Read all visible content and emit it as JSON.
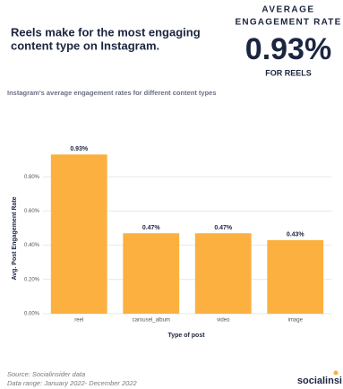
{
  "header": {
    "title_lines": [
      "Reels make for the most engaging",
      "content type on Instagram."
    ],
    "kpi_label_lines": [
      "AVERAGE",
      "ENGAGEMENT RATE"
    ],
    "kpi_value": "0.93%",
    "kpi_caption": "FOR REELS",
    "subtitle": "Instagram's average engagement rates for different content types"
  },
  "chart_data": {
    "type": "bar",
    "x_label": "Type of post",
    "y_label": "Avg. Post Engagement Rate",
    "categories": [
      "reel",
      "carousel_album",
      "video",
      "image"
    ],
    "values": [
      0.93,
      0.47,
      0.47,
      0.43
    ],
    "value_labels": [
      "0.93%",
      "0.47%",
      "0.47%",
      "0.43%"
    ],
    "color": "#fbb040",
    "ylim": [
      0,
      1
    ],
    "yticks": [
      {
        "value": 0,
        "label": "0.00%"
      },
      {
        "value": 0.2,
        "label": "0.20%"
      },
      {
        "value": 0.4,
        "label": "0.40%"
      },
      {
        "value": 0.6,
        "label": "0.60%"
      },
      {
        "value": 0.8,
        "label": "0.80%"
      }
    ],
    "grid": true
  },
  "footer": {
    "source_lines": [
      "Source: Socialinsider data",
      "Data range: January 2022- December 2022"
    ],
    "logo": "socialinsi"
  }
}
